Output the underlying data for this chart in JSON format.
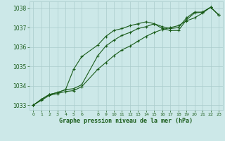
{
  "title": "Graphe pression niveau de la mer (hPa)",
  "bg_color": "#cce8e8",
  "grid_color": "#aacccc",
  "line_color": "#1a5c1a",
  "hours": [
    0,
    1,
    2,
    3,
    4,
    5,
    6,
    8,
    9,
    10,
    11,
    12,
    13,
    14,
    15,
    16,
    17,
    18,
    19,
    20,
    21,
    22,
    23
  ],
  "line1": [
    1033.0,
    1033.3,
    1033.55,
    1033.65,
    1033.8,
    1033.85,
    1034.05,
    1035.55,
    1036.05,
    1036.35,
    1036.6,
    1036.75,
    1036.95,
    1037.05,
    1037.2,
    1037.05,
    1036.95,
    1037.0,
    1037.5,
    1037.8,
    1037.8,
    1038.05,
    1037.65
  ],
  "line2": [
    1033.0,
    1033.3,
    1033.55,
    1033.65,
    1033.8,
    1034.85,
    1035.5,
    1036.1,
    1036.55,
    1036.85,
    1036.95,
    1037.1,
    1037.2,
    1037.3,
    1037.2,
    1036.95,
    1036.85,
    1036.85,
    1037.4,
    1037.75,
    1037.8,
    1038.05,
    1037.65
  ],
  "line3": [
    1033.0,
    1033.25,
    1033.5,
    1033.6,
    1033.7,
    1033.75,
    1033.95,
    1034.85,
    1035.2,
    1035.55,
    1035.85,
    1036.05,
    1036.3,
    1036.55,
    1036.75,
    1036.9,
    1037.0,
    1037.1,
    1037.35,
    1037.5,
    1037.75,
    1038.05,
    1037.65
  ],
  "ylim": [
    1032.75,
    1038.35
  ],
  "yticks": [
    1033,
    1034,
    1035,
    1036,
    1037,
    1038
  ],
  "xlim": [
    -0.5,
    23.5
  ],
  "xticks": [
    0,
    1,
    2,
    3,
    4,
    5,
    6,
    8,
    9,
    10,
    11,
    12,
    13,
    14,
    15,
    16,
    17,
    18,
    19,
    20,
    21,
    22,
    23
  ]
}
